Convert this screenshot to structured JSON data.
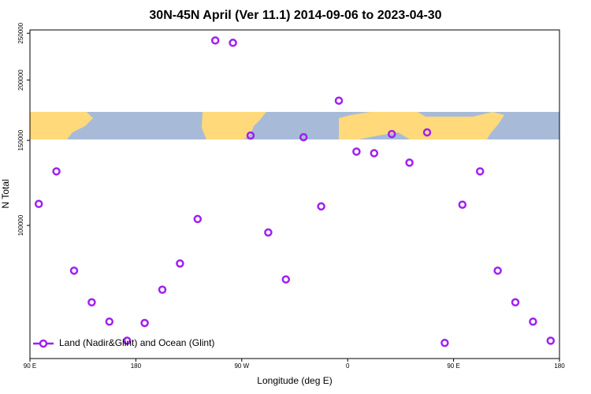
{
  "chart_data": {
    "type": "scatter",
    "title": "30N-45N April (Ver 11.1)   2014-09-06 to 2023-04-30",
    "x_label": "Longitude (deg E)",
    "y_label": "N Total",
    "x": [
      97.5,
      112.5,
      127.5,
      142.5,
      157.5,
      172.5,
      187.5,
      202.5,
      217.5,
      232.5,
      247.5,
      262.5,
      277.5,
      292.5,
      307.5,
      322.5,
      337.5,
      352.5,
      367.5,
      382.5,
      397.5,
      412.5,
      427.5,
      442.5,
      457.5,
      472.5,
      487.5,
      502.5,
      517.5,
      532.5
    ],
    "series": [
      {
        "name": "Land (Nadir&Glint) and Ocean (Glint)",
        "color": "#a020f0",
        "values": [
          110800,
          129400,
          80600,
          69300,
          63200,
          57700,
          62800,
          73600,
          83400,
          103100,
          241600,
          238900,
          153500,
          96700,
          77300,
          152300,
          109500,
          181300,
          142200,
          141100,
          154600,
          134900,
          155800,
          57100,
          110400,
          129400,
          80600,
          69300,
          63200,
          57700
        ]
      }
    ],
    "xlim": [
      90,
      540
    ],
    "xticks": [
      {
        "value": 90,
        "label": "90 E"
      },
      180,
      {
        "value": 270,
        "label": "90 W"
      },
      {
        "value": 360,
        "label": "0"
      },
      {
        "value": 450,
        "label": "90 E"
      },
      {
        "value": 540,
        "label": "180"
      }
    ],
    "ylim": [
      53000,
      254000
    ],
    "ylog": true,
    "yticks": [
      100000,
      150000,
      200000,
      250000
    ],
    "legend": "bottom-left"
  }
}
